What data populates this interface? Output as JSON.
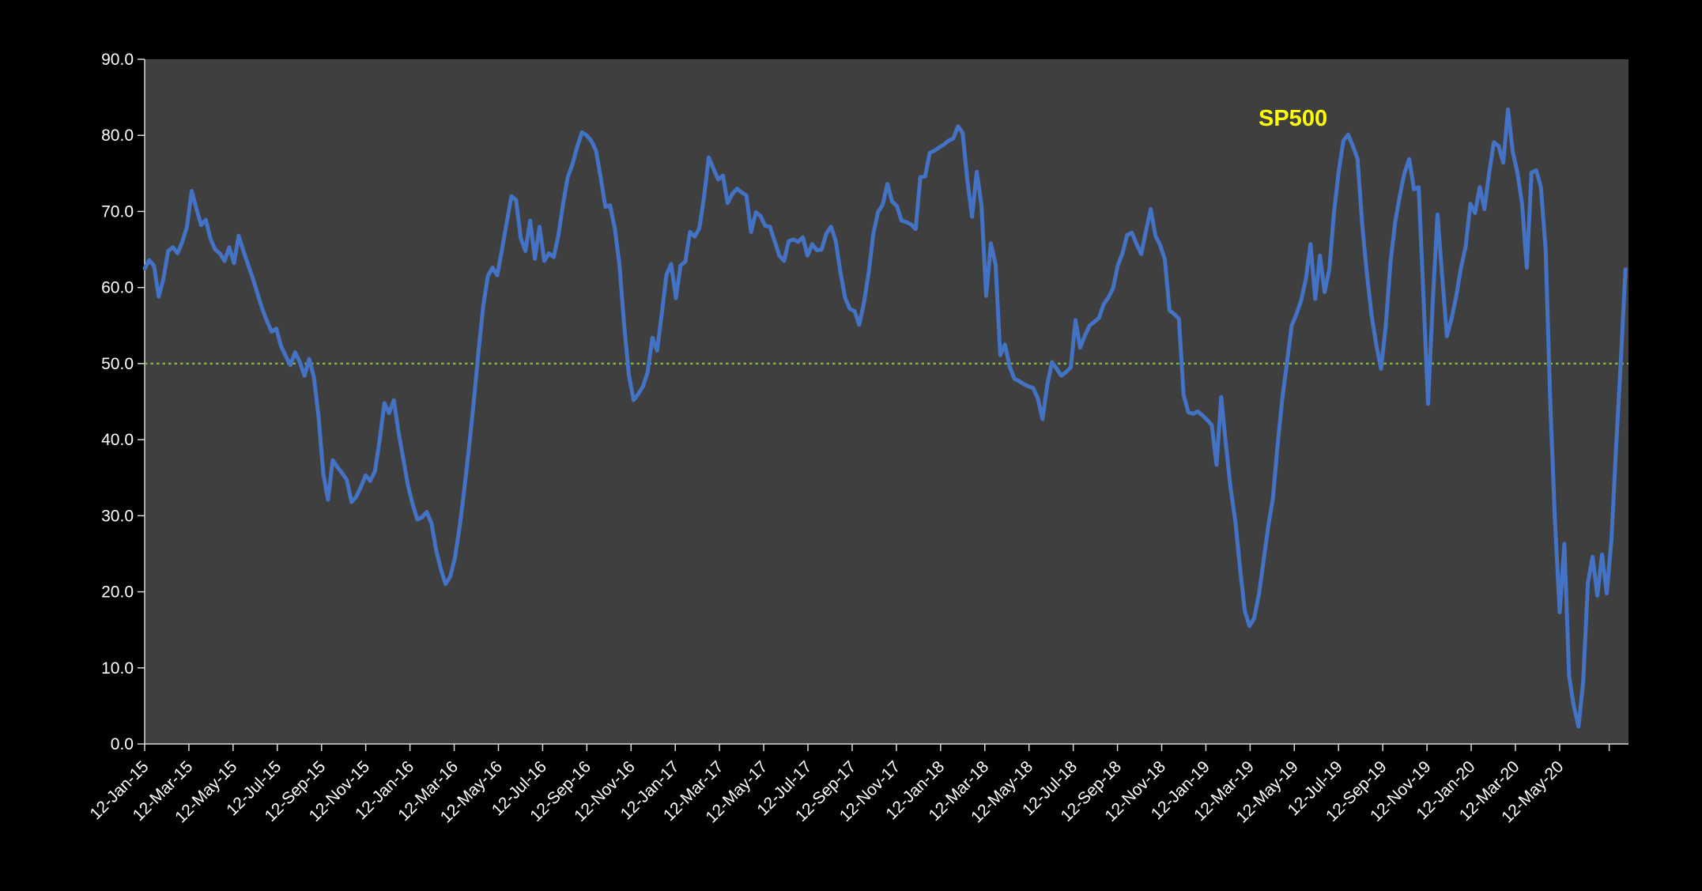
{
  "chart_data": {
    "type": "line",
    "title": "",
    "series_label": "SP500",
    "legend_position": "none",
    "grid": "off",
    "chart_bg_color": "#000000",
    "plot_bg_color": "#3F3F3F",
    "axis_line_color": "#D9D9D9",
    "tick_label_color": "#FFFFFF",
    "series_label_color": "#FFFF00",
    "line_color": "#4472C4",
    "reference_line": {
      "value": 50.0,
      "color": "#7CB348",
      "style": "dotted"
    },
    "ylim": [
      0,
      90
    ],
    "y_tick_labels": [
      "0.0",
      "10.0",
      "20.0",
      "30.0",
      "40.0",
      "50.0",
      "60.0",
      "70.0",
      "80.0",
      "90.0"
    ],
    "x_tick_labels": [
      "12-Jan-15",
      "12-Mar-15",
      "12-May-15",
      "12-Jul-15",
      "12-Sep-15",
      "12-Nov-15",
      "12-Jan-16",
      "12-Mar-16",
      "12-May-16",
      "12-Jul-16",
      "12-Sep-16",
      "12-Nov-16",
      "12-Jan-17",
      "12-Mar-17",
      "12-May-17",
      "12-Jul-17",
      "12-Sep-17",
      "12-Nov-17",
      "12-Jan-18",
      "12-Mar-18",
      "12-May-18",
      "12-Jul-18",
      "12-Sep-18",
      "12-Nov-18",
      "12-Jan-19",
      "12-Mar-19",
      "12-May-19",
      "12-Jul-19",
      "12-Sep-19",
      "12-Nov-19",
      "12-Jan-20",
      "12-Mar-20",
      "12-May-20"
    ],
    "values": [
      62.5,
      63.6,
      62.8,
      58.8,
      61.2,
      64.8,
      65.3,
      64.5,
      66.0,
      68.0,
      72.7,
      70.4,
      68.2,
      68.9,
      66.4,
      65.0,
      64.5,
      63.5,
      65.3,
      63.2,
      66.8,
      64.8,
      63.0,
      61.2,
      59.2,
      57.2,
      55.6,
      54.2,
      54.6,
      52.3,
      51.0,
      49.8,
      51.5,
      50.2,
      48.4,
      50.6,
      48.2,
      43.0,
      35.5,
      32.1,
      37.3,
      36.4,
      35.6,
      34.7,
      31.8,
      32.5,
      33.8,
      35.3,
      34.6,
      35.9,
      40.0,
      44.8,
      43.5,
      45.2,
      41.0,
      37.5,
      34.0,
      31.5,
      29.5,
      29.8,
      30.5,
      29.0,
      25.5,
      23.0,
      21.0,
      22.0,
      24.5,
      28.5,
      33.5,
      39.0,
      45.0,
      51.5,
      57.5,
      61.5,
      62.6,
      61.6,
      65.0,
      68.5,
      72.0,
      71.5,
      66.5,
      64.8,
      68.8,
      63.8,
      68.0,
      63.5,
      64.5,
      64.0,
      66.8,
      71.0,
      74.5,
      76.2,
      78.5,
      80.4,
      80.0,
      79.3,
      78.0,
      74.5,
      70.6,
      70.8,
      67.8,
      63.0,
      55.0,
      48.5,
      45.2,
      46.0,
      47.0,
      48.9,
      53.4,
      51.7,
      56.5,
      61.7,
      63.1,
      58.6,
      62.9,
      63.4,
      67.3,
      66.7,
      67.8,
      72.0,
      77.1,
      75.6,
      74.2,
      74.7,
      71.1,
      72.3,
      73.0,
      72.5,
      72.1,
      67.3,
      69.9,
      69.4,
      68.1,
      68.0,
      66.1,
      64.2,
      63.5,
      66.1,
      66.3,
      66.0,
      66.6,
      64.2,
      65.7,
      64.9,
      65.0,
      67.1,
      68.0,
      66.1,
      62.0,
      58.6,
      57.2,
      56.9,
      55.1,
      58.0,
      61.9,
      67.1,
      69.9,
      70.9,
      73.6,
      71.3,
      70.7,
      68.8,
      68.6,
      68.3,
      67.7,
      74.5,
      74.6,
      77.7,
      78.0,
      78.4,
      78.8,
      79.3,
      79.6,
      81.2,
      80.3,
      74.1,
      69.3,
      75.2,
      70.9,
      58.9,
      65.8,
      63.0,
      51.1,
      52.5,
      49.6,
      48.0,
      47.7,
      47.3,
      47.0,
      46.8,
      45.4,
      42.7,
      47.2,
      50.2,
      49.3,
      48.4,
      48.9,
      49.5,
      55.7,
      52.1,
      53.7,
      55.0,
      55.5,
      56.0,
      57.8,
      58.7,
      59.9,
      62.9,
      64.5,
      66.9,
      67.2,
      65.7,
      64.4,
      67.5,
      70.3,
      66.8,
      65.6,
      63.7,
      57.0,
      56.5,
      55.9,
      45.9,
      43.6,
      43.4,
      43.7,
      43.2,
      42.6,
      41.9,
      36.7,
      45.6,
      39.3,
      33.6,
      29.3,
      23.1,
      17.5,
      15.5,
      16.5,
      19.6,
      24.0,
      28.6,
      32.3,
      39.3,
      45.4,
      50.2,
      55.0,
      56.5,
      58.3,
      61.1,
      65.7,
      58.5,
      64.2,
      59.4,
      62.4,
      69.9,
      75.3,
      79.3,
      80.1,
      78.6,
      76.9,
      68.2,
      61.7,
      56.3,
      52.4,
      49.3,
      55.0,
      63.3,
      68.6,
      72.1,
      75.1,
      76.9,
      72.9,
      73.2,
      59.2,
      44.7,
      58.1,
      69.6,
      61.5,
      53.6,
      55.9,
      58.9,
      62.6,
      65.4,
      71.0,
      69.8,
      73.2,
      70.3,
      75.1,
      79.1,
      78.6,
      76.4,
      83.4,
      77.9,
      75.1,
      71.0,
      62.6,
      75.1,
      75.4,
      73.2,
      65.0,
      44.7,
      29.3,
      17.3,
      26.3,
      8.9,
      5.0,
      2.3,
      8.2,
      21.2,
      24.6,
      19.5,
      24.9,
      19.8,
      26.8,
      39.1,
      50.3,
      62.4
    ]
  }
}
